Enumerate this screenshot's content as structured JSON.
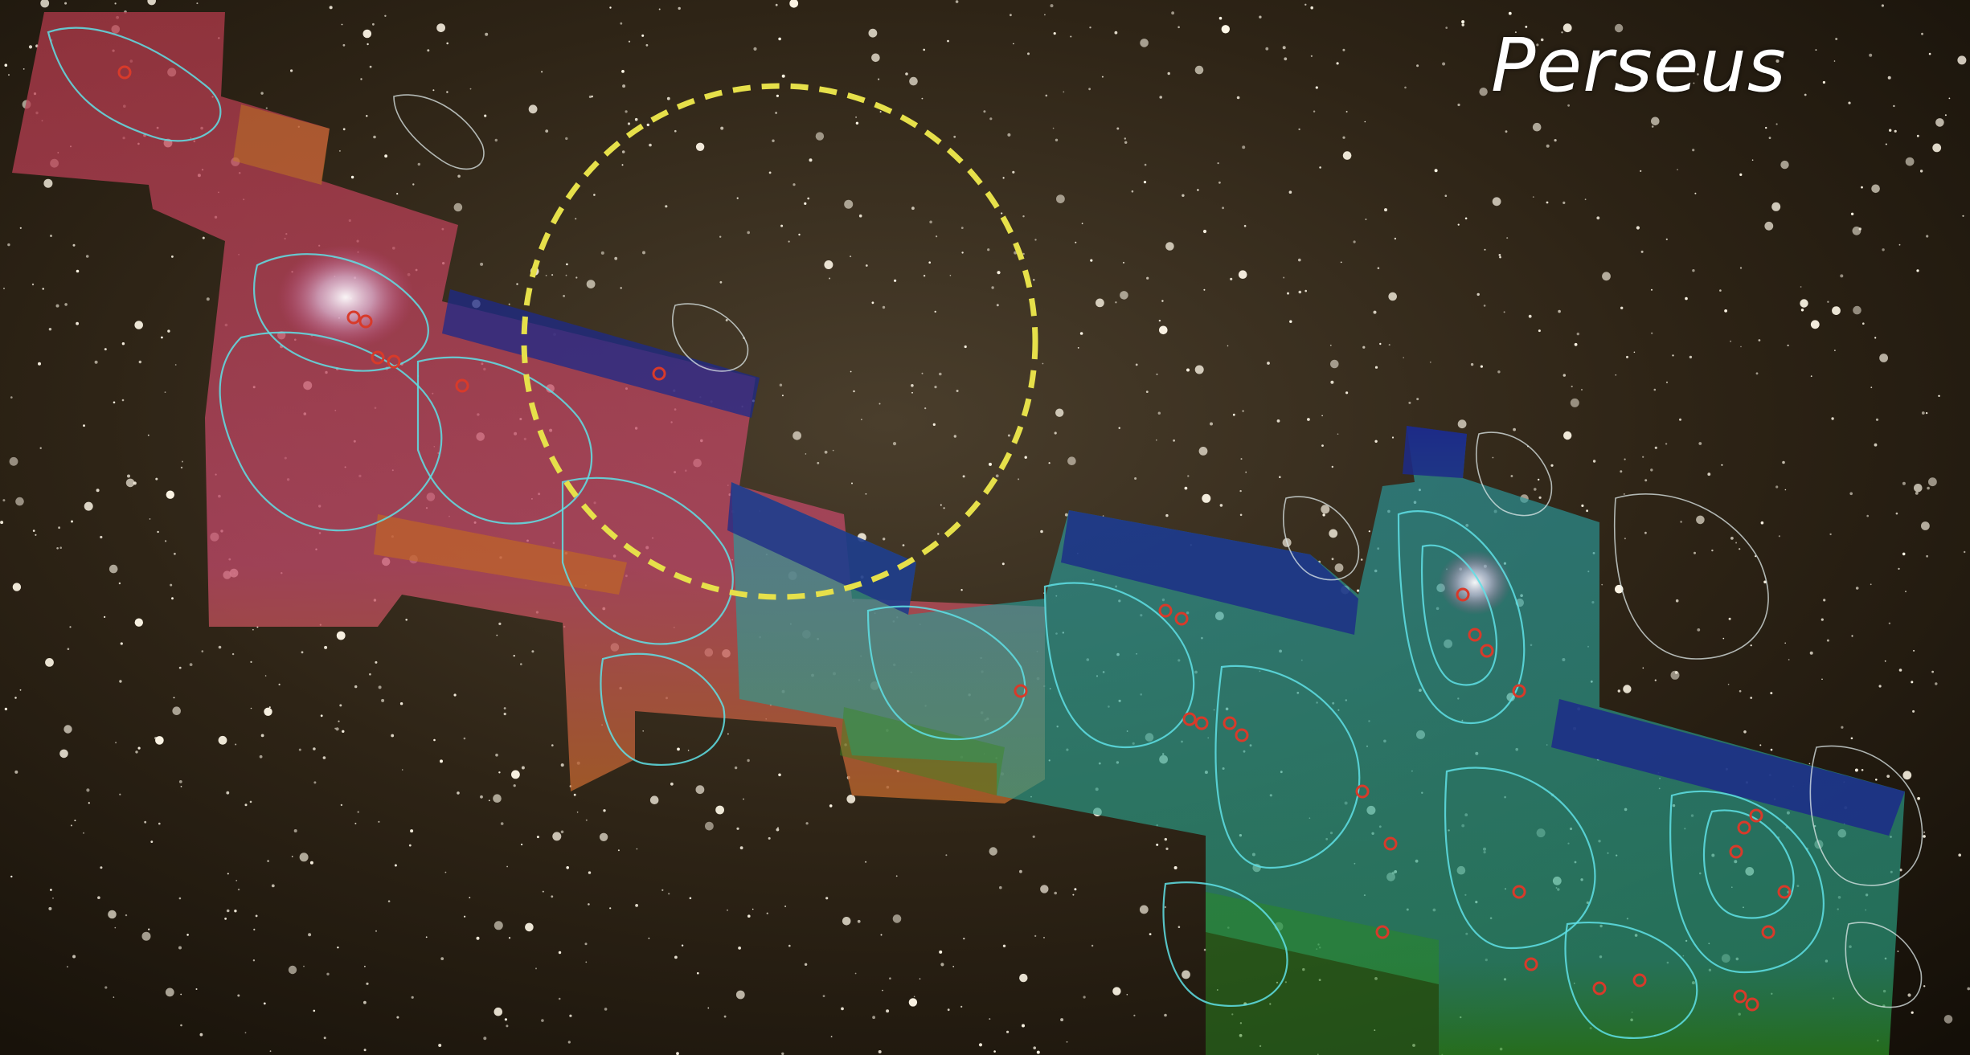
{
  "title": "Perseus",
  "colors": {
    "sky": "#2a2114",
    "contour": "#5fe0e6",
    "yso_marker": "#d83a2a",
    "highlight_circle": "#e6e04a",
    "mosaic_red": "#c23a5a",
    "mosaic_cyan": "#2aa6a0",
    "mosaic_blue": "#1a2a8a",
    "mosaic_green": "#2a8a2a",
    "mosaic_orange": "#c86a1a"
  }
}
